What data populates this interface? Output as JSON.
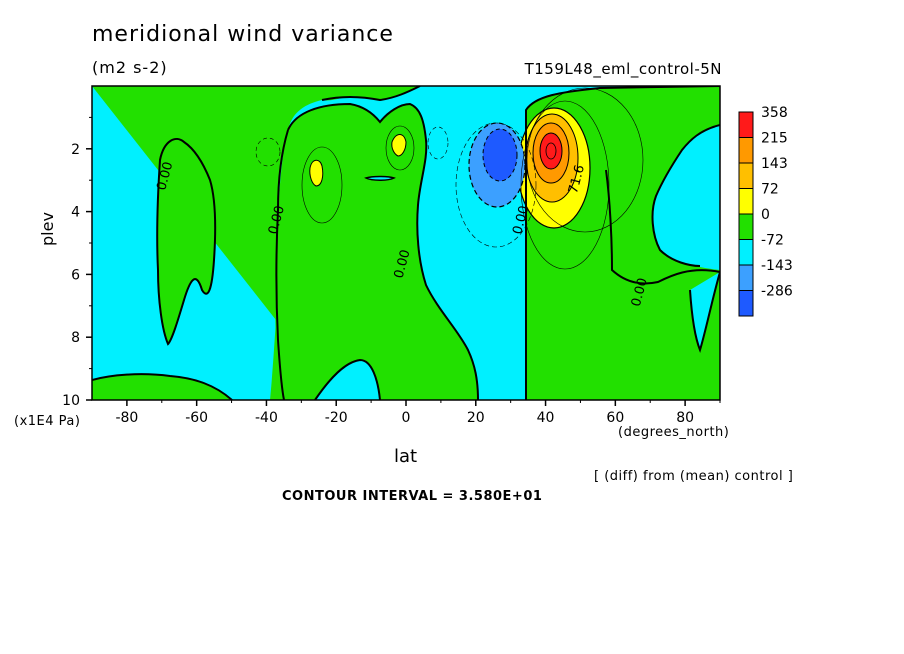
{
  "title": "meridional wind variance",
  "units": "(m2 s-2)",
  "run_label": "T159L48_eml_control-5N",
  "diff_label": "[ (diff) from (mean) control ]",
  "contour_interval": "CONTOUR INTERVAL = 3.580E+01",
  "colors": {
    "cyan": "#00f0ff",
    "green": "#22e000",
    "yellow": "#ffff00",
    "orange_light": "#ffbf00",
    "orange": "#ff9900",
    "red": "#ff1a1a",
    "blue_light": "#3ca0ff",
    "blue": "#1e5aff"
  },
  "chart_data": {
    "type": "contour",
    "xlabel": "lat",
    "xunit": "(degrees_north)",
    "ylabel": "plev",
    "yunit": "(x1E4 Pa)",
    "xlim": [
      -90,
      90
    ],
    "ylim": [
      10,
      0
    ],
    "xticks": [
      "-80",
      "-60",
      "-40",
      "-20",
      "0",
      "20",
      "40",
      "60",
      "80"
    ],
    "xtick_values": [
      -80,
      -60,
      -40,
      -20,
      0,
      20,
      40,
      60,
      80
    ],
    "yticks": [
      "2",
      "4",
      "6",
      "8",
      "10"
    ],
    "ytick_values": [
      2,
      4,
      6,
      8,
      10
    ],
    "colorbar": {
      "labels": [
        "358",
        "215",
        "143",
        "72",
        "0",
        "-72",
        "-143",
        "-286"
      ],
      "colors": [
        "#ff1a1a",
        "#ff9900",
        "#ffbf00",
        "#ffff00",
        "#22e000",
        "#00f0ff",
        "#3ca0ff",
        "#1e5aff"
      ]
    },
    "contour_labels": [
      {
        "text": "0.00",
        "lat": -68,
        "plev": 2.9
      },
      {
        "text": "0.00",
        "lat": -36,
        "plev": 4.3
      },
      {
        "text": "0.00",
        "lat": 0,
        "plev": 5.7
      },
      {
        "text": "0.00",
        "lat": 34,
        "plev": 4.3
      },
      {
        "text": "71.6",
        "lat": 50,
        "plev": 3.0
      },
      {
        "text": "0.00",
        "lat": 68,
        "plev": 6.6
      }
    ],
    "features": [
      {
        "kind": "max",
        "lat": 42,
        "plev": 2.1,
        "value": 358
      },
      {
        "kind": "min",
        "lat": 27,
        "plev": 2.3,
        "value": -143
      }
    ]
  }
}
